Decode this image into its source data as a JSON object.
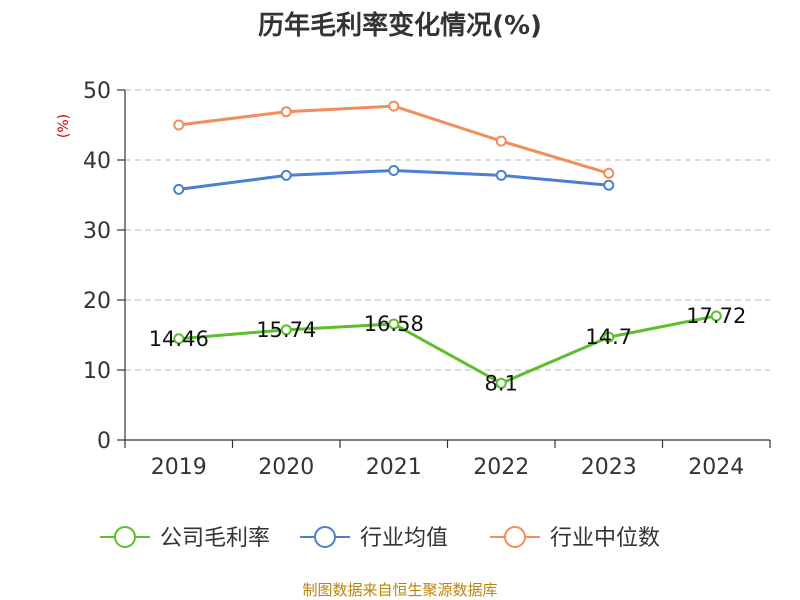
{
  "chart_data": {
    "type": "line",
    "title": "历年毛利率变化情况(%)",
    "ylabel": "(%)",
    "xlabel": "",
    "categories": [
      "2019",
      "2020",
      "2021",
      "2022",
      "2023",
      "2024"
    ],
    "ylim": [
      0,
      50
    ],
    "yticks": [
      0,
      10,
      20,
      30,
      40,
      50
    ],
    "grid": true,
    "legend_position": "bottom",
    "series": [
      {
        "name": "公司毛利率",
        "color": "#5cbf2a",
        "values": [
          14.46,
          15.74,
          16.58,
          8.1,
          14.7,
          17.72
        ],
        "labels": [
          "14.46",
          "15.74",
          "16.58",
          "8.1",
          "14.7",
          "17.72"
        ]
      },
      {
        "name": "行业均值",
        "color": "#4a7fd4",
        "values": [
          35.8,
          37.8,
          38.5,
          37.8,
          36.4,
          null
        ]
      },
      {
        "name": "行业中位数",
        "color": "#f28e5a",
        "values": [
          45.0,
          46.9,
          47.7,
          42.7,
          38.1,
          null
        ]
      }
    ]
  },
  "source_text": "制图数据来自恒生聚源数据库"
}
